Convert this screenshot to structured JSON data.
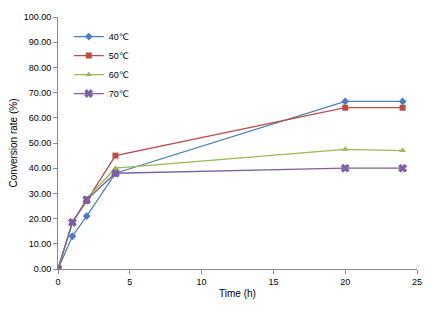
{
  "chart_data": {
    "type": "line",
    "x_label": "Time (h)",
    "y_label": "Conversion rate (%)",
    "x": [
      0,
      1,
      2,
      4,
      20,
      24
    ],
    "series": [
      {
        "name": "40℃",
        "color": "#4a7ebb",
        "marker": "diamond",
        "values": [
          0,
          13,
          21,
          38,
          66.5,
          66.5
        ]
      },
      {
        "name": "50℃",
        "color": "#be4b48",
        "marker": "square",
        "values": [
          0,
          18.5,
          27,
          45,
          64,
          64
        ]
      },
      {
        "name": "60℃",
        "color": "#98b954",
        "marker": "triangle",
        "values": [
          0,
          18,
          28,
          40,
          47.5,
          47
        ]
      },
      {
        "name": "70℃",
        "color": "#7d60a0",
        "marker": "x",
        "values": [
          0,
          18.5,
          27.5,
          38,
          40,
          40
        ]
      }
    ],
    "xlim": [
      0,
      25
    ],
    "xticks": [
      0,
      5,
      10,
      15,
      20,
      25
    ],
    "ylim": [
      0,
      100
    ],
    "yticks": [
      {
        "value": 0,
        "label": "0.00"
      },
      {
        "value": 10,
        "label": "10.00"
      },
      {
        "value": 20,
        "label": "20.00"
      },
      {
        "value": 30,
        "label": "30.00"
      },
      {
        "value": 40,
        "label": "40.00"
      },
      {
        "value": 50,
        "label": "50.00"
      },
      {
        "value": 60,
        "label": "60.00"
      },
      {
        "value": 70,
        "label": "70.00"
      },
      {
        "value": 80,
        "label": "80.00"
      },
      {
        "value": 90,
        "label": "90.00"
      },
      {
        "value": 100,
        "label": "100.00"
      }
    ],
    "grid": false,
    "legend": "top-left"
  }
}
